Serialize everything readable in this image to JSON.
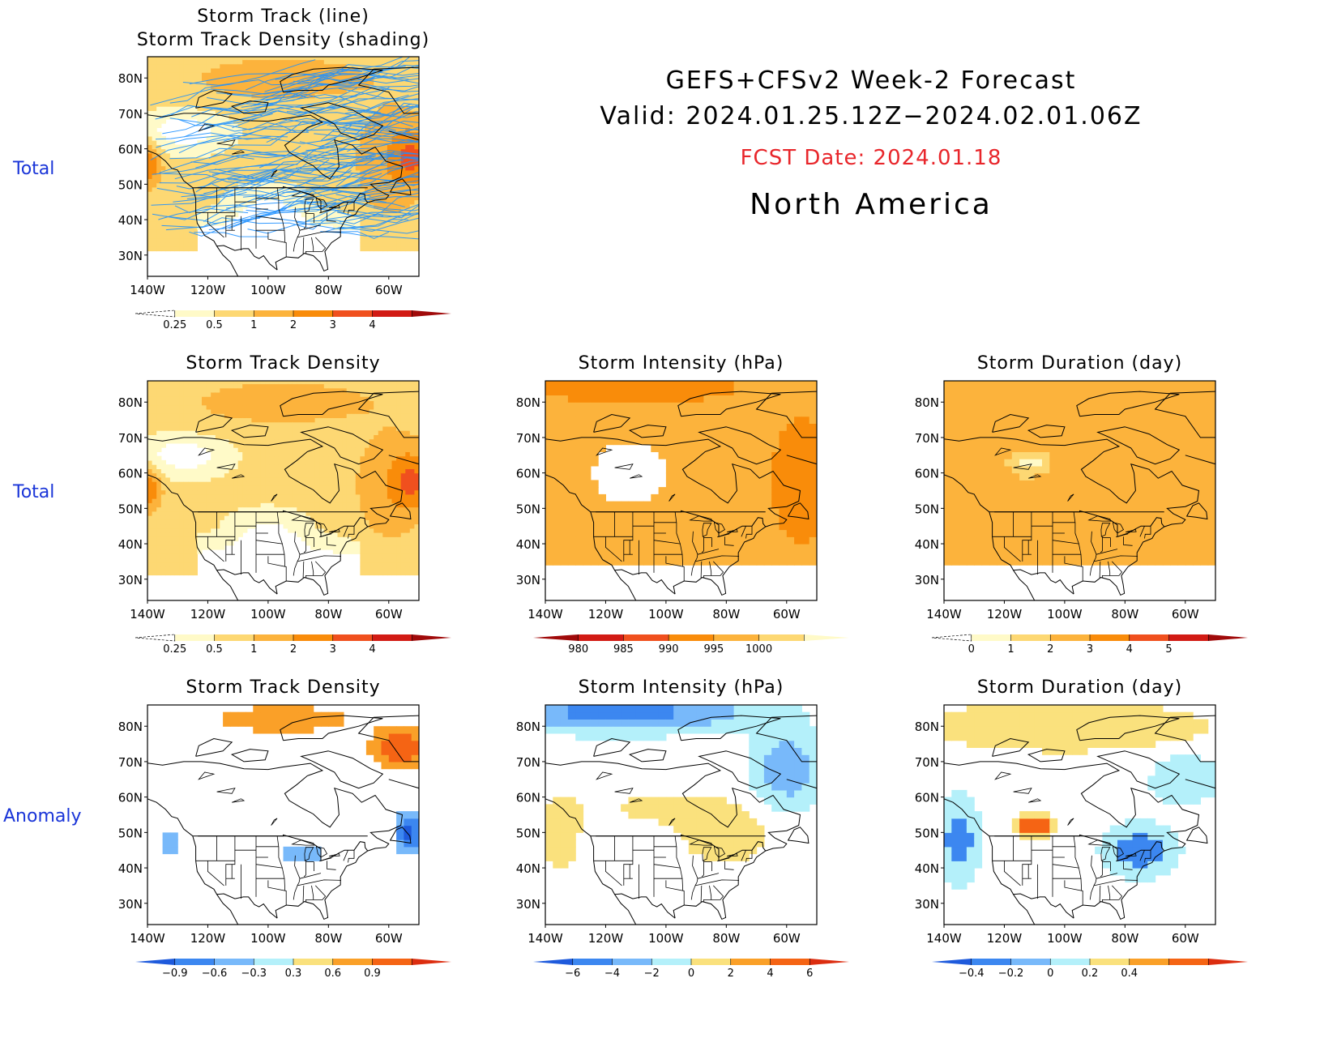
{
  "header": {
    "line1": "GEFS+CFSv2 Week-2 Forecast",
    "line2": "Valid: 2024.01.25.12Z−2024.02.01.06Z",
    "fcst_date": "FCST Date: 2024.01.18",
    "region": "North America"
  },
  "row_labels": [
    "Total",
    "Total",
    "Anomaly"
  ],
  "axes": {
    "lat_labels": [
      "80N",
      "70N",
      "60N",
      "50N",
      "40N",
      "30N"
    ],
    "lon_labels": [
      "140W",
      "120W",
      "100W",
      "80W",
      "60W"
    ]
  },
  "panels": [
    {
      "title": [
        "Storm Track (line)",
        "Storm Track Density (shading)"
      ],
      "colorbar": [
        "0.25",
        "0.5",
        "1",
        "2",
        "3",
        "4"
      ],
      "field": "density",
      "tracks": true,
      "palette": "warm"
    },
    {
      "title": [
        "Storm Track Density"
      ],
      "colorbar": [
        "0.25",
        "0.5",
        "1",
        "2",
        "3",
        "4"
      ],
      "field": "density",
      "tracks": false,
      "palette": "warm"
    },
    {
      "title": [
        "Storm Intensity (hPa)"
      ],
      "colorbar": [
        "980",
        "985",
        "990",
        "995",
        "1000"
      ],
      "field": "intensity",
      "tracks": false,
      "palette": "warm_rev"
    },
    {
      "title": [
        "Storm Duration (day)"
      ],
      "colorbar": [
        "0",
        "1",
        "2",
        "3",
        "4",
        "5"
      ],
      "field": "duration",
      "tracks": false,
      "palette": "warm"
    },
    {
      "title": [
        "Storm Track Density"
      ],
      "colorbar": [
        "−0.9",
        "−0.6",
        "−0.3",
        "0.3",
        "0.6",
        "0.9"
      ],
      "field": "density_anom",
      "tracks": false,
      "palette": "diverging"
    },
    {
      "title": [
        "Storm Intensity (hPa)"
      ],
      "colorbar": [
        "−6",
        "−4",
        "−2",
        "0",
        "2",
        "4",
        "6"
      ],
      "field": "intensity_anom",
      "tracks": false,
      "palette": "diverging"
    },
    {
      "title": [
        "Storm Duration (day)"
      ],
      "colorbar": [
        "−0.4",
        "−0.2",
        "0",
        "0.2",
        "0.4"
      ],
      "field": "duration_anom",
      "tracks": false,
      "palette": "diverging"
    }
  ],
  "colors": {
    "warm": [
      "#fffac8",
      "#fdd873",
      "#fcb33c",
      "#f98c0a",
      "#f0501e",
      "#d21b14",
      "#a00a0a"
    ],
    "diverging": [
      "#1e5adc",
      "#3c87f0",
      "#78b9fa",
      "#b4f0fa",
      "#fae17d",
      "#faa028",
      "#f56414",
      "#dc2d0f"
    ],
    "track_line": "#1e90ff",
    "row_label": "#1a35d8",
    "fcst_date": "#e8262b"
  }
}
